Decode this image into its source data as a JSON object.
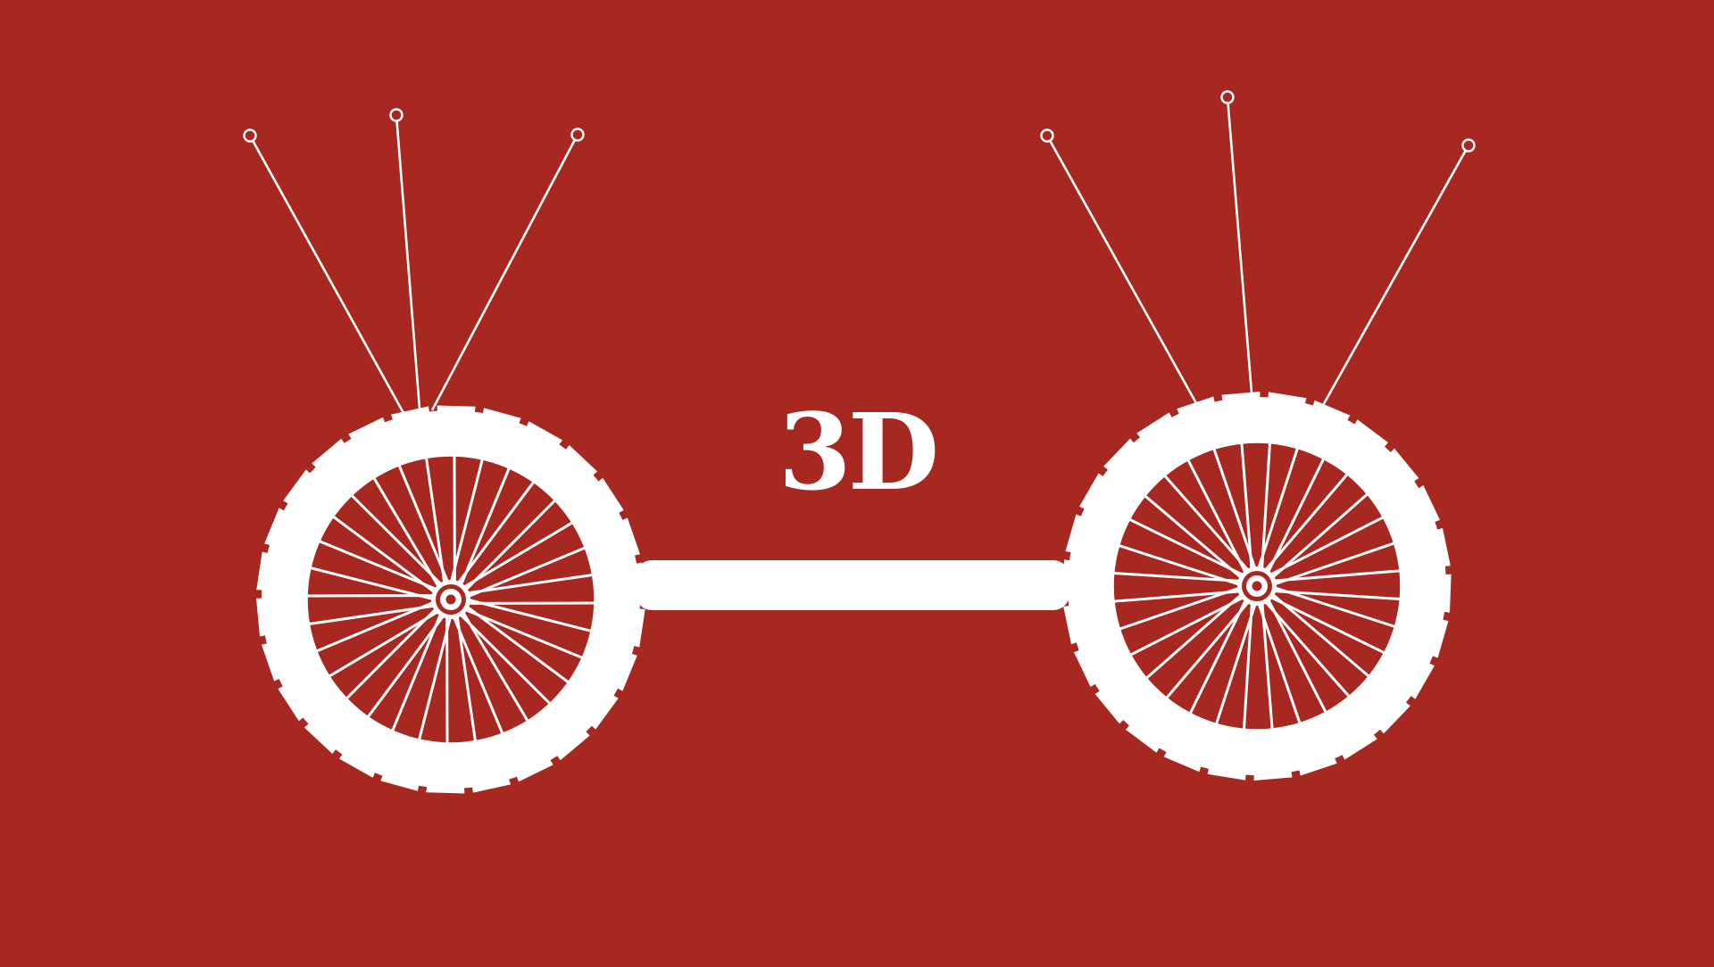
{
  "label": "3D",
  "colors": {
    "background": "#a72820",
    "foreground": "#ffffff"
  },
  "icons": {
    "left_wheel": "bicycle-wheel-icon",
    "right_wheel": "bicycle-wheel-icon",
    "connector": "axle-bar",
    "pins": "pin-antenna-icon"
  }
}
